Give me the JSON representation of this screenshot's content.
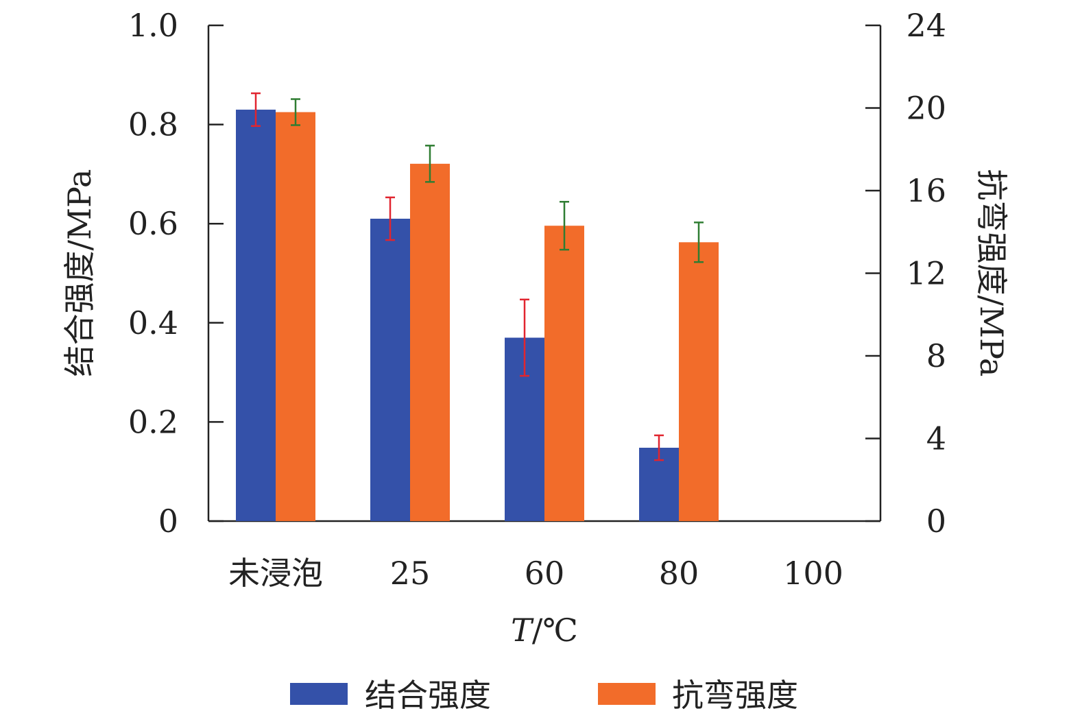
{
  "chart_data": {
    "type": "bar",
    "categories": [
      "未浸泡",
      "25",
      "60",
      "80",
      "100"
    ],
    "xlabel_italic": "T",
    "xlabel_unit": "/℃",
    "ylabel": "结合强度/MPa",
    "y2label": "抗弯强度/MPa",
    "ylim": [
      0,
      1.0
    ],
    "y2lim": [
      0,
      24
    ],
    "yticks": [
      "0",
      "0.2",
      "0.4",
      "0.6",
      "0.8",
      "1.0"
    ],
    "ytick_values": [
      0,
      0.2,
      0.4,
      0.6,
      0.8,
      1.0
    ],
    "y2ticks": [
      "0",
      "4",
      "8",
      "12",
      "16",
      "20",
      "24"
    ],
    "y2tick_values": [
      0,
      4,
      8,
      12,
      16,
      20,
      24
    ],
    "legend_position": "bottom",
    "series": [
      {
        "name": "结合强度",
        "axis": "left",
        "color": "#3451a9",
        "error_color": "#e1252f",
        "values": [
          0.83,
          0.61,
          0.37,
          0.148,
          null
        ],
        "errors": [
          0.033,
          0.043,
          0.077,
          0.025,
          null
        ]
      },
      {
        "name": "抗弯强度",
        "axis": "right",
        "color": "#f26c2a",
        "error_color": "#2f7d32",
        "values": [
          19.8,
          17.3,
          14.3,
          13.5,
          null
        ],
        "errors": [
          0.63,
          0.88,
          1.16,
          0.96,
          null
        ]
      }
    ]
  }
}
